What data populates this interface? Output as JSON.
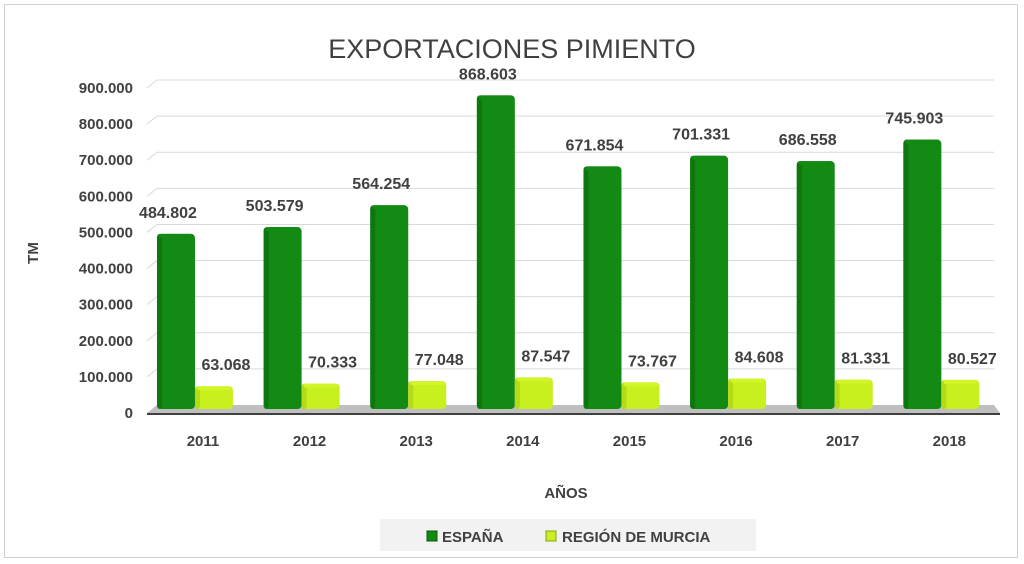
{
  "chart_data": {
    "type": "bar",
    "title": "EXPORTACIONES PIMIENTO",
    "xlabel": "AÑOS",
    "ylabel": "TM",
    "ylim": [
      0,
      900000
    ],
    "yticks": [
      0,
      100000,
      200000,
      300000,
      400000,
      500000,
      600000,
      700000,
      800000,
      900000
    ],
    "ytick_labels": [
      "0",
      "100.000",
      "200.000",
      "300.000",
      "400.000",
      "500.000",
      "600.000",
      "700.000",
      "800.000",
      "900.000"
    ],
    "categories": [
      "2011",
      "2012",
      "2013",
      "2014",
      "2015",
      "2016",
      "2017",
      "2018"
    ],
    "grid": true,
    "legend": "bottom",
    "style": "3d-column",
    "series": [
      {
        "name": "ESPAÑA",
        "color": "#138a13",
        "values": [
          484802,
          503579,
          564254,
          868603,
          671854,
          701331,
          686558,
          745903
        ],
        "labels": [
          "484.802",
          "503.579",
          "564.254",
          "868.603",
          "671.854",
          "701.331",
          "686.558",
          "745.903"
        ]
      },
      {
        "name": "REGIÓN DE MURCIA",
        "color": "#c8f01e",
        "values": [
          63068,
          70333,
          77048,
          87547,
          73767,
          84608,
          81331,
          80527
        ],
        "labels": [
          "63.068",
          "70.333",
          "77.048",
          "87.547",
          "73.767",
          "84.608",
          "81.331",
          "80.527"
        ]
      }
    ]
  }
}
